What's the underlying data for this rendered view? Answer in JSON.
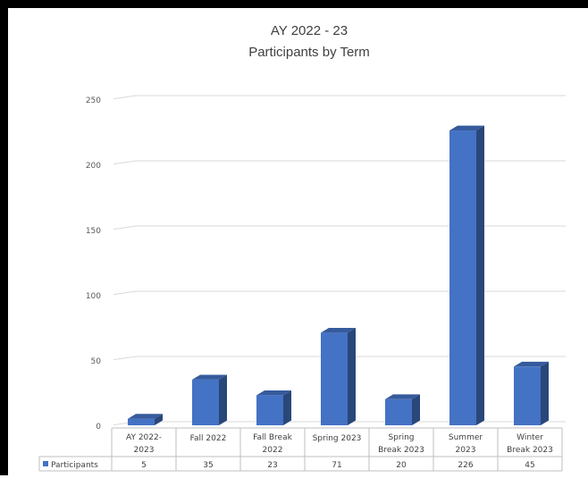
{
  "chart_data": {
    "type": "bar",
    "title": "AY 2022 - 23",
    "subtitle": "Participants by Term",
    "categories": [
      [
        "AY 2022-",
        "2023"
      ],
      [
        "Fall 2022"
      ],
      [
        "Fall Break",
        "2022"
      ],
      [
        "Spring 2023"
      ],
      [
        "Spring",
        "Break 2023"
      ],
      [
        "Summer",
        "2023"
      ],
      [
        "Winter",
        "Break 2023"
      ]
    ],
    "series": [
      {
        "name": "Participants",
        "values": [
          5,
          35,
          23,
          71,
          20,
          226,
          45
        ],
        "color": "#4472C4"
      }
    ],
    "ylim": [
      0,
      250
    ],
    "yticks": [
      0,
      50,
      100,
      150,
      200,
      250
    ],
    "grid": true,
    "legend": "data-table-left"
  }
}
